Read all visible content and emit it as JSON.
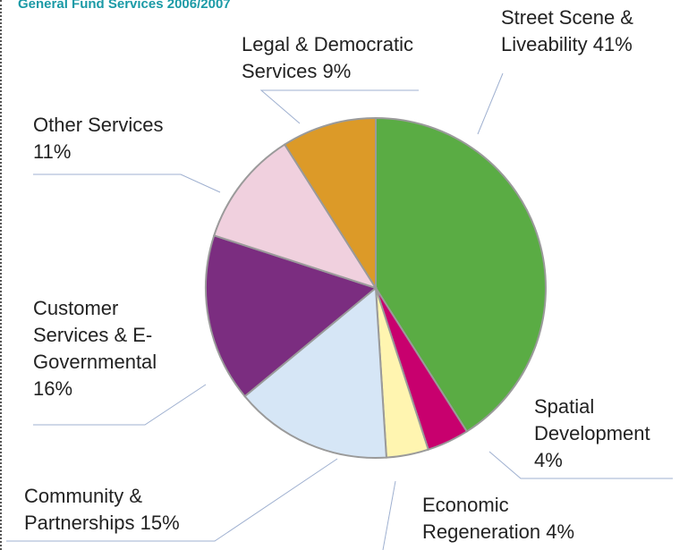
{
  "chart_data": {
    "type": "pie",
    "title": "General Fund Services 2006/2007",
    "categories": [
      "Street Scene & Liveability",
      "Spatial Development",
      "Economic Regeneration",
      "Community & Partnerships",
      "Customer Services & E-Governmental",
      "Other Services",
      "Legal & Democratic Services"
    ],
    "values": [
      41,
      4,
      4,
      15,
      16,
      11,
      9
    ],
    "value_labels": [
      "41%",
      "4%",
      "4%",
      "15%",
      "16%",
      "11%",
      "9%"
    ],
    "colors": [
      "#5aac44",
      "#c8006e",
      "#fff5b0",
      "#d6e6f6",
      "#7b2d80",
      "#f0d0de",
      "#dc9a28"
    ]
  }
}
